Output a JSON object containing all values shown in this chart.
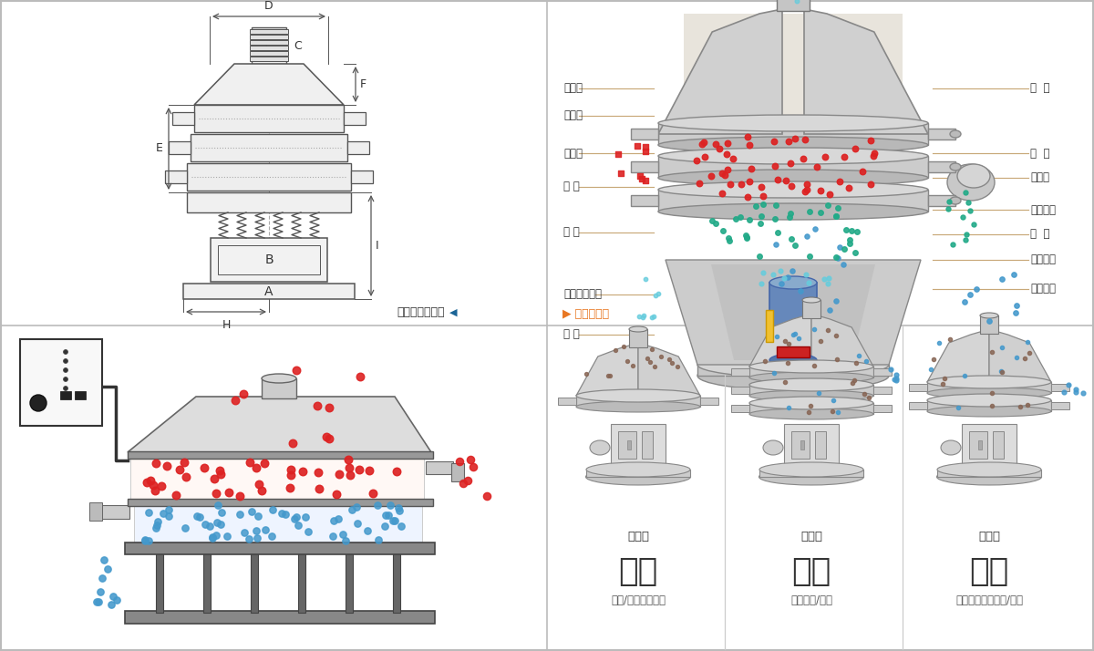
{
  "bg_color": "#ffffff",
  "panel_border": "#c0c0c0",
  "red_color": "#dd2222",
  "blue_color": "#4499cc",
  "brown_color": "#996633",
  "green_color": "#22aa88",
  "cyan_color": "#66ccdd",
  "yellow_color": "#f0c030",
  "orange_color": "#e87722",
  "dim_line_color": "#555555",
  "tan_line_color": "#c8a878",
  "machine_light": "#e8e8e8",
  "machine_mid": "#cccccc",
  "machine_dark": "#999999",
  "machine_darker": "#777777",
  "struct_labels_left": [
    "进料口",
    "防尘盖",
    "出料口",
    "束 环",
    "弹 簧",
    "运输固定螺栓",
    "机 座"
  ],
  "struct_labels_right": [
    "筛  网",
    "网  架",
    "加重块",
    "上部重锤",
    "筛  盘",
    "振动电机",
    "下部重锤"
  ],
  "outer_label": "外形尺寸示意图",
  "struct_label": "结构示意图",
  "bottom_panels": [
    {
      "label_top": "单层式",
      "label_main": "分级",
      "label_sub": "颗粒/粉末准确分级",
      "layers": 1
    },
    {
      "label_top": "三层式",
      "label_main": "过滤",
      "label_sub": "去除异物/结块",
      "layers": 3
    },
    {
      "label_top": "双层式",
      "label_main": "除杂",
      "label_sub": "去除液体中的颗粒/异物",
      "layers": 2
    }
  ]
}
